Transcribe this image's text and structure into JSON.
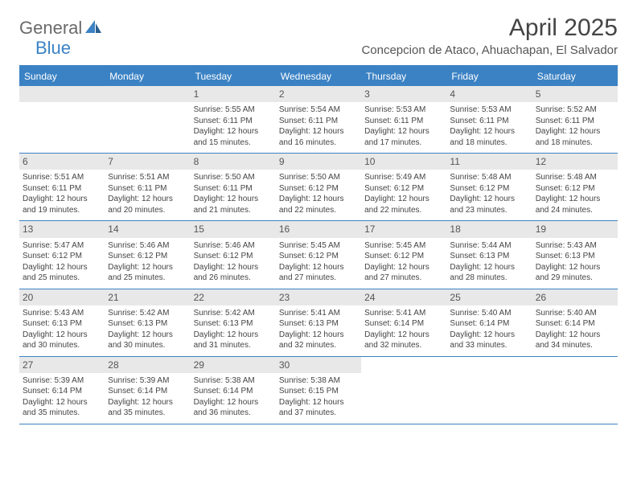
{
  "logo": {
    "part1": "General",
    "part2": "Blue"
  },
  "title": "April 2025",
  "location": "Concepcion de Ataco, Ahuachapan, El Salvador",
  "colors": {
    "header_bg": "#3b82c4",
    "header_text": "#ffffff",
    "daynum_bg": "#e8e8e8",
    "text": "#444444",
    "logo_gray": "#6a6a6a",
    "logo_blue": "#3b82c4"
  },
  "day_headers": [
    "Sunday",
    "Monday",
    "Tuesday",
    "Wednesday",
    "Thursday",
    "Friday",
    "Saturday"
  ],
  "weeks": [
    [
      {
        "num": "",
        "empty": true
      },
      {
        "num": "",
        "empty": true
      },
      {
        "num": "1",
        "sunrise": "Sunrise: 5:55 AM",
        "sunset": "Sunset: 6:11 PM",
        "daylight1": "Daylight: 12 hours",
        "daylight2": "and 15 minutes."
      },
      {
        "num": "2",
        "sunrise": "Sunrise: 5:54 AM",
        "sunset": "Sunset: 6:11 PM",
        "daylight1": "Daylight: 12 hours",
        "daylight2": "and 16 minutes."
      },
      {
        "num": "3",
        "sunrise": "Sunrise: 5:53 AM",
        "sunset": "Sunset: 6:11 PM",
        "daylight1": "Daylight: 12 hours",
        "daylight2": "and 17 minutes."
      },
      {
        "num": "4",
        "sunrise": "Sunrise: 5:53 AM",
        "sunset": "Sunset: 6:11 PM",
        "daylight1": "Daylight: 12 hours",
        "daylight2": "and 18 minutes."
      },
      {
        "num": "5",
        "sunrise": "Sunrise: 5:52 AM",
        "sunset": "Sunset: 6:11 PM",
        "daylight1": "Daylight: 12 hours",
        "daylight2": "and 18 minutes."
      }
    ],
    [
      {
        "num": "6",
        "sunrise": "Sunrise: 5:51 AM",
        "sunset": "Sunset: 6:11 PM",
        "daylight1": "Daylight: 12 hours",
        "daylight2": "and 19 minutes."
      },
      {
        "num": "7",
        "sunrise": "Sunrise: 5:51 AM",
        "sunset": "Sunset: 6:11 PM",
        "daylight1": "Daylight: 12 hours",
        "daylight2": "and 20 minutes."
      },
      {
        "num": "8",
        "sunrise": "Sunrise: 5:50 AM",
        "sunset": "Sunset: 6:11 PM",
        "daylight1": "Daylight: 12 hours",
        "daylight2": "and 21 minutes."
      },
      {
        "num": "9",
        "sunrise": "Sunrise: 5:50 AM",
        "sunset": "Sunset: 6:12 PM",
        "daylight1": "Daylight: 12 hours",
        "daylight2": "and 22 minutes."
      },
      {
        "num": "10",
        "sunrise": "Sunrise: 5:49 AM",
        "sunset": "Sunset: 6:12 PM",
        "daylight1": "Daylight: 12 hours",
        "daylight2": "and 22 minutes."
      },
      {
        "num": "11",
        "sunrise": "Sunrise: 5:48 AM",
        "sunset": "Sunset: 6:12 PM",
        "daylight1": "Daylight: 12 hours",
        "daylight2": "and 23 minutes."
      },
      {
        "num": "12",
        "sunrise": "Sunrise: 5:48 AM",
        "sunset": "Sunset: 6:12 PM",
        "daylight1": "Daylight: 12 hours",
        "daylight2": "and 24 minutes."
      }
    ],
    [
      {
        "num": "13",
        "sunrise": "Sunrise: 5:47 AM",
        "sunset": "Sunset: 6:12 PM",
        "daylight1": "Daylight: 12 hours",
        "daylight2": "and 25 minutes."
      },
      {
        "num": "14",
        "sunrise": "Sunrise: 5:46 AM",
        "sunset": "Sunset: 6:12 PM",
        "daylight1": "Daylight: 12 hours",
        "daylight2": "and 25 minutes."
      },
      {
        "num": "15",
        "sunrise": "Sunrise: 5:46 AM",
        "sunset": "Sunset: 6:12 PM",
        "daylight1": "Daylight: 12 hours",
        "daylight2": "and 26 minutes."
      },
      {
        "num": "16",
        "sunrise": "Sunrise: 5:45 AM",
        "sunset": "Sunset: 6:12 PM",
        "daylight1": "Daylight: 12 hours",
        "daylight2": "and 27 minutes."
      },
      {
        "num": "17",
        "sunrise": "Sunrise: 5:45 AM",
        "sunset": "Sunset: 6:12 PM",
        "daylight1": "Daylight: 12 hours",
        "daylight2": "and 27 minutes."
      },
      {
        "num": "18",
        "sunrise": "Sunrise: 5:44 AM",
        "sunset": "Sunset: 6:13 PM",
        "daylight1": "Daylight: 12 hours",
        "daylight2": "and 28 minutes."
      },
      {
        "num": "19",
        "sunrise": "Sunrise: 5:43 AM",
        "sunset": "Sunset: 6:13 PM",
        "daylight1": "Daylight: 12 hours",
        "daylight2": "and 29 minutes."
      }
    ],
    [
      {
        "num": "20",
        "sunrise": "Sunrise: 5:43 AM",
        "sunset": "Sunset: 6:13 PM",
        "daylight1": "Daylight: 12 hours",
        "daylight2": "and 30 minutes."
      },
      {
        "num": "21",
        "sunrise": "Sunrise: 5:42 AM",
        "sunset": "Sunset: 6:13 PM",
        "daylight1": "Daylight: 12 hours",
        "daylight2": "and 30 minutes."
      },
      {
        "num": "22",
        "sunrise": "Sunrise: 5:42 AM",
        "sunset": "Sunset: 6:13 PM",
        "daylight1": "Daylight: 12 hours",
        "daylight2": "and 31 minutes."
      },
      {
        "num": "23",
        "sunrise": "Sunrise: 5:41 AM",
        "sunset": "Sunset: 6:13 PM",
        "daylight1": "Daylight: 12 hours",
        "daylight2": "and 32 minutes."
      },
      {
        "num": "24",
        "sunrise": "Sunrise: 5:41 AM",
        "sunset": "Sunset: 6:14 PM",
        "daylight1": "Daylight: 12 hours",
        "daylight2": "and 32 minutes."
      },
      {
        "num": "25",
        "sunrise": "Sunrise: 5:40 AM",
        "sunset": "Sunset: 6:14 PM",
        "daylight1": "Daylight: 12 hours",
        "daylight2": "and 33 minutes."
      },
      {
        "num": "26",
        "sunrise": "Sunrise: 5:40 AM",
        "sunset": "Sunset: 6:14 PM",
        "daylight1": "Daylight: 12 hours",
        "daylight2": "and 34 minutes."
      }
    ],
    [
      {
        "num": "27",
        "sunrise": "Sunrise: 5:39 AM",
        "sunset": "Sunset: 6:14 PM",
        "daylight1": "Daylight: 12 hours",
        "daylight2": "and 35 minutes."
      },
      {
        "num": "28",
        "sunrise": "Sunrise: 5:39 AM",
        "sunset": "Sunset: 6:14 PM",
        "daylight1": "Daylight: 12 hours",
        "daylight2": "and 35 minutes."
      },
      {
        "num": "29",
        "sunrise": "Sunrise: 5:38 AM",
        "sunset": "Sunset: 6:14 PM",
        "daylight1": "Daylight: 12 hours",
        "daylight2": "and 36 minutes."
      },
      {
        "num": "30",
        "sunrise": "Sunrise: 5:38 AM",
        "sunset": "Sunset: 6:15 PM",
        "daylight1": "Daylight: 12 hours",
        "daylight2": "and 37 minutes."
      },
      {
        "num": "",
        "empty": true,
        "noBar": true
      },
      {
        "num": "",
        "empty": true,
        "noBar": true
      },
      {
        "num": "",
        "empty": true,
        "noBar": true
      }
    ]
  ]
}
